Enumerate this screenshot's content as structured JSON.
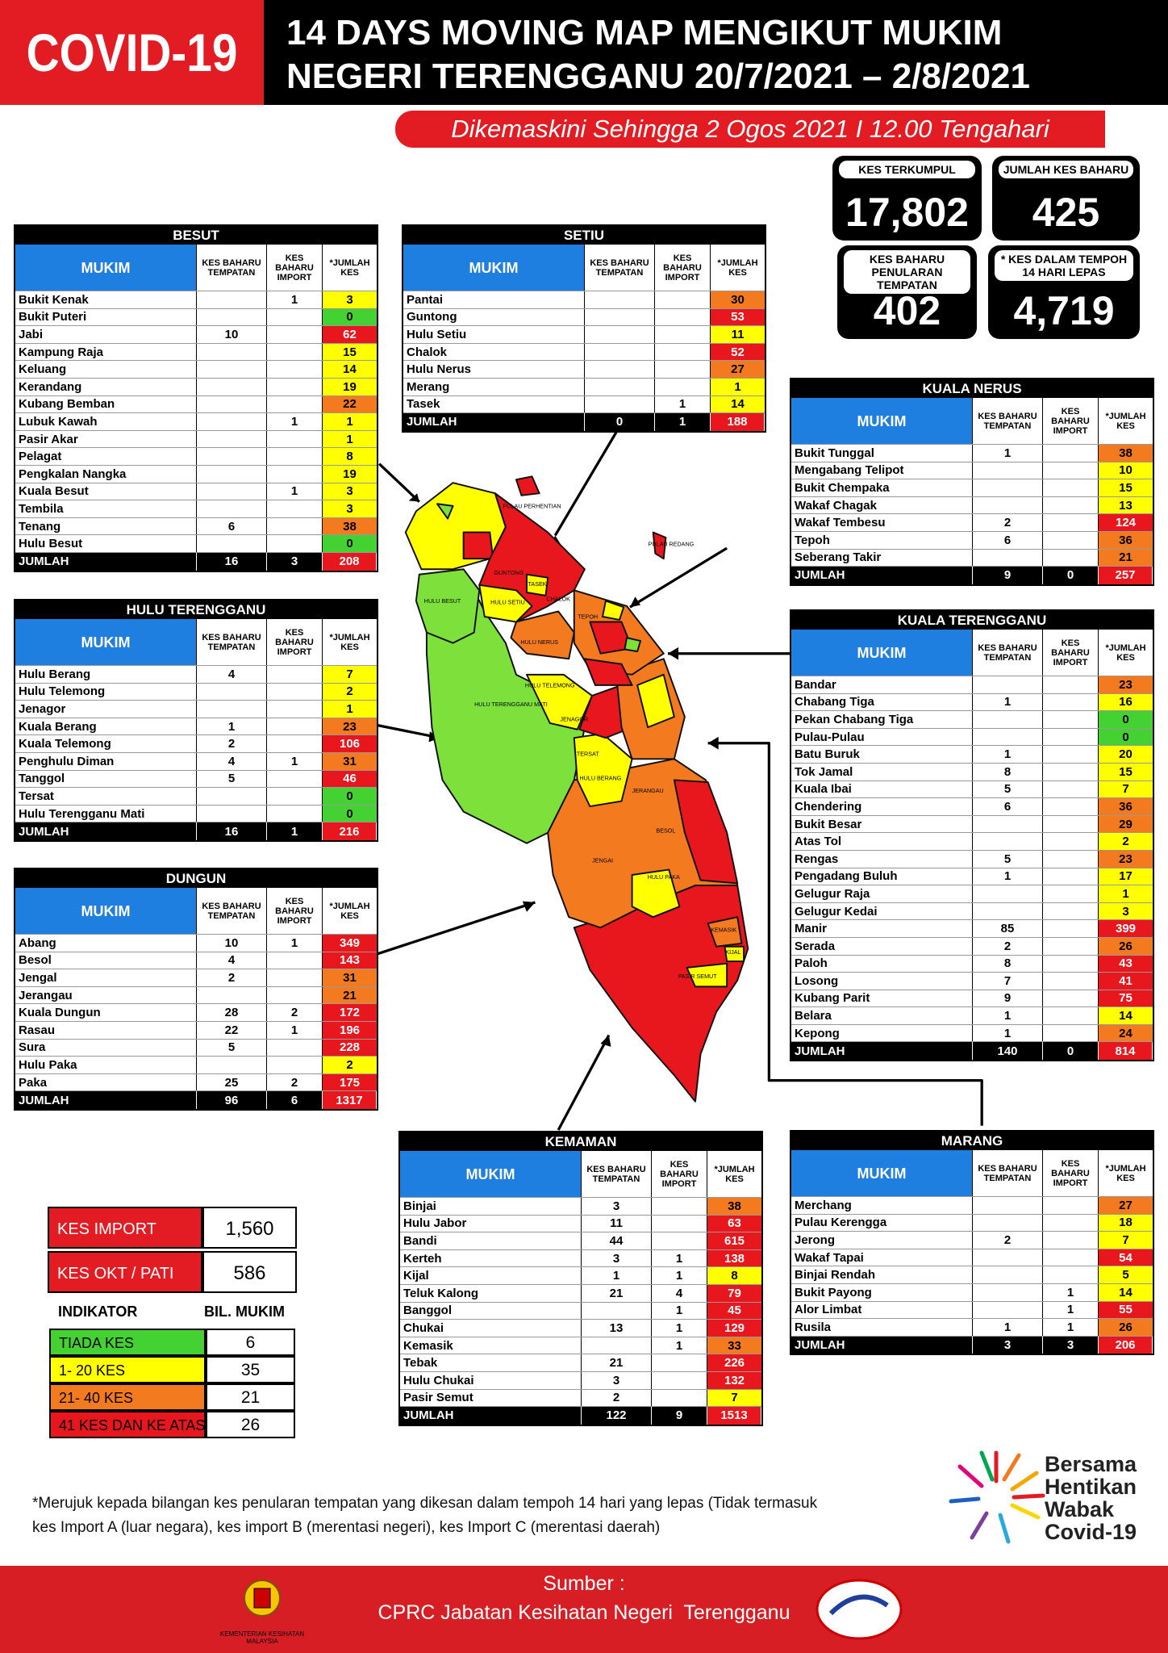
{
  "header": {
    "badge": "COVID-19",
    "title_line1": "14 DAYS MOVING MAP MENGIKUT MUKIM",
    "title_line2": "NEGERI TERENGGANU 20/7/2021 – 2/8/2021",
    "updated": "Dikemaskini Sehingga 2 Ogos 2021 I 12.00 Tengahari"
  },
  "stats": [
    {
      "label": "KES TERKUMPUL",
      "value": "17,802"
    },
    {
      "label": "JUMLAH KES BAHARU",
      "value": "425"
    },
    {
      "label": "KES BAHARU PENULARAN TEMPATAN",
      "value": "402"
    },
    {
      "label": "* KES DALAM TEMPOH 14 HARI LEPAS",
      "value": "4,719"
    }
  ],
  "column_headers": {
    "mukim": "MUKIM",
    "tempatan": "KES BAHARU TEMPATAN",
    "import": "KES BAHARU IMPORT",
    "jumlah": "*JUMLAH KES"
  },
  "total_label": "JUMLAH",
  "tables": [
    {
      "district": "BESUT",
      "rows": [
        {
          "mukim": "Bukit Kenak",
          "import": 1,
          "jumlah": 3
        },
        {
          "mukim": "Bukit Puteri",
          "jumlah": 0
        },
        {
          "mukim": "Jabi",
          "tempatan": 10,
          "jumlah": 62
        },
        {
          "mukim": "Kampung Raja",
          "jumlah": 15
        },
        {
          "mukim": "Keluang",
          "jumlah": 14
        },
        {
          "mukim": "Kerandang",
          "jumlah": 19
        },
        {
          "mukim": "Kubang Bemban",
          "jumlah": 22
        },
        {
          "mukim": "Lubuk Kawah",
          "import": 1,
          "jumlah": 1
        },
        {
          "mukim": "Pasir Akar",
          "jumlah": 1
        },
        {
          "mukim": "Pelagat",
          "jumlah": 8
        },
        {
          "mukim": "Pengkalan Nangka",
          "jumlah": 19
        },
        {
          "mukim": "Kuala Besut",
          "import": 1,
          "jumlah": 3
        },
        {
          "mukim": "Tembila",
          "jumlah": 3
        },
        {
          "mukim": "Tenang",
          "tempatan": 6,
          "jumlah": 38
        },
        {
          "mukim": "Hulu Besut",
          "jumlah": 0
        }
      ],
      "total": {
        "tempatan": 16,
        "import": 3,
        "jumlah": 208
      }
    },
    {
      "district": "SETIU",
      "rows": [
        {
          "mukim": "Pantai",
          "jumlah": 30
        },
        {
          "mukim": "Guntong",
          "jumlah": 53
        },
        {
          "mukim": "Hulu Setiu",
          "jumlah": 11
        },
        {
          "mukim": "Chalok",
          "jumlah": 52
        },
        {
          "mukim": "Hulu Nerus",
          "jumlah": 27
        },
        {
          "mukim": "Merang",
          "jumlah": 1
        },
        {
          "mukim": "Tasek",
          "import": 1,
          "jumlah": 14
        }
      ],
      "total": {
        "tempatan": 0,
        "import": 1,
        "jumlah": 188
      }
    },
    {
      "district": "KUALA NERUS",
      "rows": [
        {
          "mukim": "Bukit Tunggal",
          "tempatan": 1,
          "jumlah": 38
        },
        {
          "mukim": "Mengabang Telipot",
          "jumlah": 10
        },
        {
          "mukim": "Bukit Chempaka",
          "jumlah": 15
        },
        {
          "mukim": "Wakaf Chagak",
          "jumlah": 13
        },
        {
          "mukim": "Wakaf Tembesu",
          "tempatan": 2,
          "jumlah": 124
        },
        {
          "mukim": "Tepoh",
          "tempatan": 6,
          "jumlah": 36
        },
        {
          "mukim": "Seberang Takir",
          "jumlah": 21
        }
      ],
      "total": {
        "tempatan": 9,
        "import": 0,
        "jumlah": 257
      }
    },
    {
      "district": "HULU TERENGGANU",
      "rows": [
        {
          "mukim": "Hulu Berang",
          "tempatan": 4,
          "jumlah": 7
        },
        {
          "mukim": "Hulu Telemong",
          "jumlah": 2
        },
        {
          "mukim": "Jenagor",
          "jumlah": 1
        },
        {
          "mukim": "Kuala Berang",
          "tempatan": 1,
          "jumlah": 23
        },
        {
          "mukim": "Kuala Telemong",
          "tempatan": 2,
          "jumlah": 106
        },
        {
          "mukim": "Penghulu Diman",
          "tempatan": 4,
          "import": 1,
          "jumlah": 31
        },
        {
          "mukim": "Tanggol",
          "tempatan": 5,
          "jumlah": 46
        },
        {
          "mukim": "Tersat",
          "jumlah": 0
        },
        {
          "mukim": "Hulu Terengganu Mati",
          "jumlah": 0
        }
      ],
      "total": {
        "tempatan": 16,
        "import": 1,
        "jumlah": 216
      }
    },
    {
      "district": "KUALA TERENGGANU",
      "rows": [
        {
          "mukim": "Bandar",
          "jumlah": 23
        },
        {
          "mukim": "Chabang Tiga",
          "tempatan": 1,
          "jumlah": 16
        },
        {
          "mukim": "Pekan Chabang Tiga",
          "jumlah": 0
        },
        {
          "mukim": "Pulau-Pulau",
          "jumlah": 0
        },
        {
          "mukim": "Batu Buruk",
          "tempatan": 1,
          "jumlah": 20
        },
        {
          "mukim": "Tok Jamal",
          "tempatan": 8,
          "jumlah": 15
        },
        {
          "mukim": "Kuala Ibai",
          "tempatan": 5,
          "jumlah": 7
        },
        {
          "mukim": "Chendering",
          "tempatan": 6,
          "jumlah": 36
        },
        {
          "mukim": "Bukit Besar",
          "jumlah": 29
        },
        {
          "mukim": "Atas Tol",
          "jumlah": 2
        },
        {
          "mukim": "Rengas",
          "tempatan": 5,
          "jumlah": 23
        },
        {
          "mukim": "Pengadang Buluh",
          "tempatan": 1,
          "jumlah": 17
        },
        {
          "mukim": "Gelugur Raja",
          "jumlah": 1
        },
        {
          "mukim": "Gelugur Kedai",
          "jumlah": 3
        },
        {
          "mukim": "Manir",
          "tempatan": 85,
          "jumlah": 399
        },
        {
          "mukim": "Serada",
          "tempatan": 2,
          "jumlah": 26
        },
        {
          "mukim": "Paloh",
          "tempatan": 8,
          "jumlah": 43
        },
        {
          "mukim": "Losong",
          "tempatan": 7,
          "jumlah": 41
        },
        {
          "mukim": "Kubang Parit",
          "tempatan": 9,
          "jumlah": 75
        },
        {
          "mukim": "Belara",
          "tempatan": 1,
          "jumlah": 14
        },
        {
          "mukim": "Kepong",
          "tempatan": 1,
          "jumlah": 24
        }
      ],
      "total": {
        "tempatan": 140,
        "import": 0,
        "jumlah": 814
      }
    },
    {
      "district": "DUNGUN",
      "rows": [
        {
          "mukim": "Abang",
          "tempatan": 10,
          "import": 1,
          "jumlah": 349
        },
        {
          "mukim": "Besol",
          "tempatan": 4,
          "jumlah": 143
        },
        {
          "mukim": "Jengal",
          "tempatan": 2,
          "jumlah": 31
        },
        {
          "mukim": "Jerangau",
          "jumlah": 21
        },
        {
          "mukim": "Kuala Dungun",
          "tempatan": 28,
          "import": 2,
          "jumlah": 172
        },
        {
          "mukim": "Rasau",
          "tempatan": 22,
          "import": 1,
          "jumlah": 196
        },
        {
          "mukim": "Sura",
          "tempatan": 5,
          "jumlah": 228
        },
        {
          "mukim": "Hulu Paka",
          "jumlah": 2
        },
        {
          "mukim": "Paka",
          "tempatan": 25,
          "import": 2,
          "jumlah": 175
        }
      ],
      "total": {
        "tempatan": 96,
        "import": 6,
        "jumlah": 1317
      }
    },
    {
      "district": "KEMAMAN",
      "rows": [
        {
          "mukim": "Binjai",
          "tempatan": 3,
          "jumlah": 38
        },
        {
          "mukim": "Hulu Jabor",
          "tempatan": 11,
          "jumlah": 63
        },
        {
          "mukim": "Bandi",
          "tempatan": 44,
          "jumlah": 615
        },
        {
          "mukim": "Kerteh",
          "tempatan": 3,
          "import": 1,
          "jumlah": 138
        },
        {
          "mukim": "Kijal",
          "tempatan": 1,
          "import": 1,
          "jumlah": 8
        },
        {
          "mukim": "Teluk Kalong",
          "tempatan": 21,
          "import": 4,
          "jumlah": 79
        },
        {
          "mukim": "Banggol",
          "import": 1,
          "jumlah": 45
        },
        {
          "mukim": "Chukai",
          "tempatan": 13,
          "import": 1,
          "jumlah": 129
        },
        {
          "mukim": "Kemasik",
          "import": 1,
          "jumlah": 33
        },
        {
          "mukim": "Tebak",
          "tempatan": 21,
          "jumlah": 226
        },
        {
          "mukim": "Hulu Chukai",
          "tempatan": 3,
          "jumlah": 132
        },
        {
          "mukim": "Pasir Semut",
          "tempatan": 2,
          "jumlah": 7
        }
      ],
      "total": {
        "tempatan": 122,
        "import": 9,
        "jumlah": 1513
      }
    },
    {
      "district": "MARANG",
      "rows": [
        {
          "mukim": "Merchang",
          "jumlah": 27
        },
        {
          "mukim": "Pulau Kerengga",
          "jumlah": 18
        },
        {
          "mukim": "Jerong",
          "tempatan": 2,
          "jumlah": 7
        },
        {
          "mukim": "Wakaf Tapai",
          "jumlah": 54
        },
        {
          "mukim": "Binjai Rendah",
          "jumlah": 5
        },
        {
          "mukim": "Bukit Payong",
          "import": 1,
          "jumlah": 14
        },
        {
          "mukim": "Alor Limbat",
          "import": 1,
          "jumlah": 55
        },
        {
          "mukim": "Rusila",
          "tempatan": 1,
          "import": 1,
          "jumlah": 26
        }
      ],
      "total": {
        "tempatan": 3,
        "import": 3,
        "jumlah": 206
      }
    }
  ],
  "key_stats": [
    {
      "label": "KES IMPORT",
      "value": "1,560"
    },
    {
      "label": "KES OKT / PATI",
      "value": 586
    }
  ],
  "indicator_header": {
    "label": "INDIKATOR",
    "count": "BIL. MUKIM"
  },
  "indicators": [
    {
      "label": "TIADA KES",
      "count": 6,
      "color": "#44d132",
      "range": [
        0,
        0
      ]
    },
    {
      "label": "1- 20 KES",
      "count": 35,
      "color": "#ffff00",
      "range": [
        1,
        20
      ]
    },
    {
      "label": "21- 40 KES",
      "count": 21,
      "color": "#f47a20",
      "range": [
        21,
        40
      ]
    },
    {
      "label": "41 KES DAN KE ATAS",
      "count": 26,
      "color": "#e8161d",
      "range": [
        41,
        null
      ]
    }
  ],
  "map_labels": [
    {
      "text": "HULU BESUT"
    },
    {
      "text": "GUNTONG"
    },
    {
      "text": "TASEK"
    },
    {
      "text": "CHALOK"
    },
    {
      "text": "HULU SETIU"
    },
    {
      "text": "HULU NERUS"
    },
    {
      "text": "TEPOH"
    },
    {
      "text": "HULU TELEMONG"
    },
    {
      "text": "JENAGOR"
    },
    {
      "text": "HULU TERENGGANU MATI"
    },
    {
      "text": "TERSAT"
    },
    {
      "text": "HULU BERANG"
    },
    {
      "text": "JERANGAU"
    },
    {
      "text": "BESOL"
    },
    {
      "text": "JENGAI"
    },
    {
      "text": "HULU PAKA"
    },
    {
      "text": "KEMASIK"
    },
    {
      "text": "PASIR SEMUT"
    },
    {
      "text": "KIJAL"
    },
    {
      "text": "PULAU PERHENTIAN"
    },
    {
      "text": "PULAU REDANG"
    }
  ],
  "footnote": [
    "*Merujuk kepada bilangan kes penularan tempatan yang dikesan dalam tempoh 14 hari yang lepas (Tidak termasuk",
    "kes Import A (luar negara), kes import B (merentasi negeri), kes Import C (merentasi daerah)"
  ],
  "campaign": [
    "Bersama",
    "Hentikan",
    "Wabak",
    "Covid-19"
  ],
  "footer": {
    "source_label": "Sumber :",
    "source": "CPRC Jabatan Kesihatan Negeri  Terengganu",
    "ministry": "KEMENTERIAN KESIHATAN MALAYSIA"
  }
}
